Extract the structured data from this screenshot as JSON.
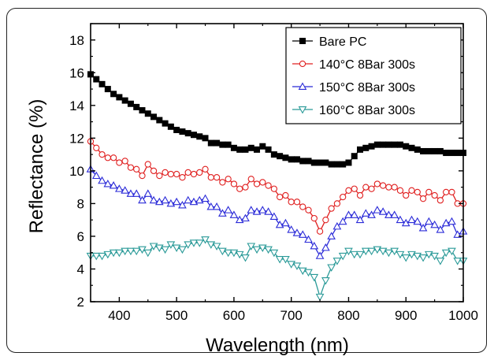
{
  "chart_data": {
    "type": "line",
    "xlabel": "Wavelength (nm)",
    "ylabel": "Reflectance (%)",
    "xlim": [
      350,
      1000
    ],
    "ylim": [
      2,
      19
    ],
    "x_ticks": [
      400,
      500,
      600,
      700,
      800,
      900,
      1000
    ],
    "y_ticks": [
      2,
      4,
      6,
      8,
      10,
      12,
      14,
      16,
      18
    ],
    "x_tick_labels": [
      "400",
      "500",
      "600",
      "700",
      "800",
      "900",
      "1000"
    ],
    "y_tick_labels": [
      "2",
      "4",
      "6",
      "8",
      "10",
      "12",
      "14",
      "16",
      "18"
    ],
    "legend_position": "top-right",
    "series": [
      {
        "name": "Bare PC",
        "color": "#000000",
        "marker": "filled-square",
        "x": [
          350,
          360,
          370,
          380,
          390,
          400,
          410,
          420,
          430,
          440,
          450,
          460,
          470,
          480,
          490,
          500,
          510,
          520,
          530,
          540,
          550,
          560,
          570,
          580,
          590,
          600,
          610,
          620,
          630,
          640,
          650,
          660,
          670,
          680,
          690,
          700,
          710,
          720,
          730,
          740,
          750,
          760,
          770,
          780,
          790,
          800,
          810,
          820,
          830,
          840,
          850,
          860,
          870,
          880,
          890,
          900,
          910,
          920,
          930,
          940,
          950,
          960,
          970,
          980,
          990,
          1000
        ],
        "values": [
          15.9,
          15.6,
          15.3,
          15.0,
          14.7,
          14.5,
          14.3,
          14.1,
          13.9,
          13.7,
          13.5,
          13.3,
          13.1,
          12.9,
          12.7,
          12.5,
          12.4,
          12.3,
          12.2,
          12.1,
          12.0,
          11.7,
          11.7,
          11.6,
          11.6,
          11.4,
          11.3,
          11.3,
          11.4,
          11.3,
          11.5,
          11.3,
          11.0,
          10.9,
          10.8,
          10.7,
          10.7,
          10.6,
          10.6,
          10.5,
          10.5,
          10.5,
          10.4,
          10.4,
          10.4,
          10.5,
          10.9,
          11.3,
          11.4,
          11.5,
          11.6,
          11.6,
          11.6,
          11.6,
          11.6,
          11.5,
          11.4,
          11.3,
          11.2,
          11.2,
          11.2,
          11.2,
          11.1,
          11.1,
          11.1,
          11.1
        ]
      },
      {
        "name": "140°C 8Bar 300s",
        "color": "#e02020",
        "marker": "circle",
        "x": [
          350,
          360,
          370,
          380,
          390,
          400,
          410,
          420,
          430,
          440,
          450,
          460,
          470,
          480,
          490,
          500,
          510,
          520,
          530,
          540,
          550,
          560,
          570,
          580,
          590,
          600,
          610,
          620,
          630,
          640,
          650,
          660,
          670,
          680,
          690,
          700,
          710,
          720,
          730,
          740,
          750,
          760,
          770,
          780,
          790,
          800,
          810,
          820,
          830,
          840,
          850,
          860,
          870,
          880,
          890,
          900,
          910,
          920,
          930,
          940,
          950,
          960,
          970,
          980,
          990,
          1000
        ],
        "values": [
          11.8,
          11.4,
          11.0,
          10.8,
          10.8,
          10.5,
          10.6,
          10.2,
          10.1,
          9.7,
          10.4,
          10.0,
          9.7,
          9.9,
          9.8,
          9.8,
          9.6,
          9.9,
          9.8,
          9.9,
          10.1,
          9.6,
          9.6,
          9.3,
          9.5,
          9.2,
          8.9,
          9.0,
          9.5,
          9.2,
          9.3,
          9.1,
          8.9,
          8.4,
          8.5,
          8.1,
          8.1,
          7.8,
          7.6,
          7.1,
          6.3,
          7.0,
          7.7,
          8.0,
          8.4,
          8.8,
          8.9,
          8.5,
          9.0,
          8.9,
          9.2,
          9.1,
          9.0,
          9.0,
          8.8,
          8.5,
          8.8,
          8.7,
          8.3,
          8.7,
          8.5,
          8.2,
          8.7,
          8.7,
          8.0,
          8.0
        ]
      },
      {
        "name": "150°C 8Bar 300s",
        "color": "#2b2bd8",
        "marker": "triangle-up",
        "x": [
          350,
          360,
          370,
          380,
          390,
          400,
          410,
          420,
          430,
          440,
          450,
          460,
          470,
          480,
          490,
          500,
          510,
          520,
          530,
          540,
          550,
          560,
          570,
          580,
          590,
          600,
          610,
          620,
          630,
          640,
          650,
          660,
          670,
          680,
          690,
          700,
          710,
          720,
          730,
          740,
          750,
          760,
          770,
          780,
          790,
          800,
          810,
          820,
          830,
          840,
          850,
          860,
          870,
          880,
          890,
          900,
          910,
          920,
          930,
          940,
          950,
          960,
          970,
          980,
          990,
          1000
        ],
        "values": [
          10.1,
          9.7,
          9.4,
          9.2,
          9.1,
          8.9,
          8.8,
          8.6,
          8.6,
          8.2,
          8.6,
          8.2,
          8.1,
          8.2,
          8.0,
          8.1,
          7.9,
          8.2,
          8.1,
          8.2,
          8.3,
          7.8,
          7.8,
          7.4,
          7.6,
          7.3,
          7.0,
          7.1,
          7.6,
          7.5,
          7.6,
          7.5,
          7.2,
          6.7,
          6.8,
          6.4,
          6.2,
          6.1,
          5.8,
          5.4,
          4.8,
          5.3,
          6.0,
          6.6,
          6.9,
          7.3,
          7.3,
          7.0,
          7.4,
          7.3,
          7.6,
          7.5,
          7.3,
          7.3,
          7.0,
          6.8,
          7.0,
          6.9,
          6.5,
          6.9,
          6.7,
          6.4,
          6.8,
          6.9,
          6.1,
          6.3
        ]
      },
      {
        "name": "160°C 8Bar 300s",
        "color": "#2a9a98",
        "marker": "triangle-down",
        "x": [
          350,
          360,
          370,
          380,
          390,
          400,
          410,
          420,
          430,
          440,
          450,
          460,
          470,
          480,
          490,
          500,
          510,
          520,
          530,
          540,
          550,
          560,
          570,
          580,
          590,
          600,
          610,
          620,
          630,
          640,
          650,
          660,
          670,
          680,
          690,
          700,
          710,
          720,
          730,
          740,
          750,
          760,
          770,
          780,
          790,
          800,
          810,
          820,
          830,
          840,
          850,
          860,
          870,
          880,
          890,
          900,
          910,
          920,
          930,
          940,
          950,
          960,
          970,
          980,
          990,
          1000
        ],
        "values": [
          4.8,
          4.8,
          4.8,
          4.9,
          5.0,
          5.0,
          5.1,
          5.1,
          5.1,
          5.2,
          5.0,
          5.4,
          5.3,
          5.2,
          5.5,
          5.3,
          5.2,
          5.5,
          5.6,
          5.6,
          5.8,
          5.5,
          5.4,
          5.1,
          5.0,
          5.0,
          4.9,
          4.7,
          5.4,
          5.2,
          5.3,
          5.2,
          5.0,
          4.6,
          4.6,
          4.3,
          4.2,
          3.9,
          3.8,
          3.5,
          2.3,
          3.3,
          4.1,
          4.5,
          4.8,
          5.1,
          4.9,
          4.9,
          5.1,
          5.1,
          5.2,
          5.1,
          5.0,
          5.1,
          4.9,
          4.7,
          4.9,
          4.8,
          4.7,
          4.9,
          4.8,
          4.5,
          5.0,
          5.1,
          4.5,
          4.5
        ]
      }
    ]
  }
}
